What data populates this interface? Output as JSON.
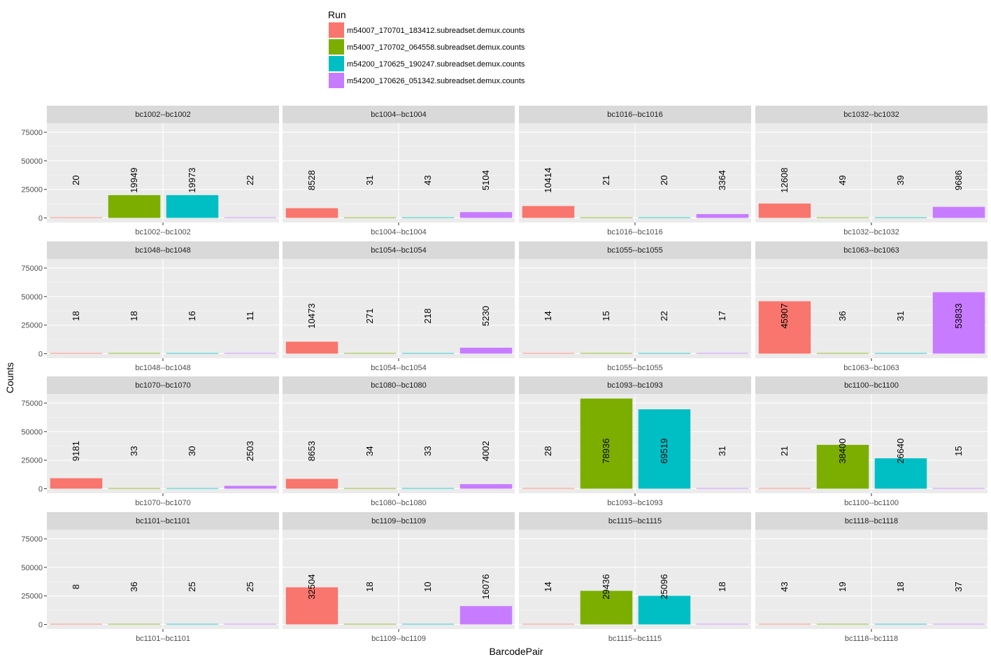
{
  "chart_data": {
    "type": "bar",
    "layout": "faceted-grid",
    "xlabel": "BarcodePair",
    "ylabel": "Counts",
    "ylim": [
      -4000,
      83000
    ],
    "yticks": [
      0,
      25000,
      50000,
      75000
    ],
    "ytick_labels": [
      "0",
      "25000",
      "50000",
      "75000"
    ],
    "legend": {
      "title": "Run",
      "position": "top",
      "entries": [
        {
          "name": "m54007_170701_183412.subreadset.demux.counts",
          "color": "#F8766D"
        },
        {
          "name": "m54007_170702_064558.subreadset.demux.counts",
          "color": "#7CAE00"
        },
        {
          "name": "m54200_170625_190247.subreadset.demux.counts",
          "color": "#00BFC4"
        },
        {
          "name": "m54200_170626_051342.subreadset.demux.counts",
          "color": "#C77CFF"
        }
      ]
    },
    "series_colors": [
      "#F8766D",
      "#7CAE00",
      "#00BFC4",
      "#C77CFF"
    ],
    "facets": [
      {
        "label": "bc1002--bc1002",
        "values": [
          20,
          19949,
          19973,
          22
        ]
      },
      {
        "label": "bc1004--bc1004",
        "values": [
          8528,
          31,
          43,
          5104
        ]
      },
      {
        "label": "bc1016--bc1016",
        "values": [
          10414,
          21,
          20,
          3364
        ]
      },
      {
        "label": "bc1032--bc1032",
        "values": [
          12608,
          49,
          39,
          9686
        ]
      },
      {
        "label": "bc1048--bc1048",
        "values": [
          18,
          18,
          16,
          11
        ]
      },
      {
        "label": "bc1054--bc1054",
        "values": [
          10473,
          271,
          218,
          5230
        ]
      },
      {
        "label": "bc1055--bc1055",
        "values": [
          14,
          15,
          22,
          17
        ]
      },
      {
        "label": "bc1063--bc1063",
        "values": [
          45907,
          36,
          31,
          53833
        ]
      },
      {
        "label": "bc1070--bc1070",
        "values": [
          9181,
          33,
          30,
          2503
        ]
      },
      {
        "label": "bc1080--bc1080",
        "values": [
          8653,
          34,
          33,
          4002
        ]
      },
      {
        "label": "bc1093--bc1093",
        "values": [
          28,
          78936,
          69519,
          31
        ]
      },
      {
        "label": "bc1100--bc1100",
        "values": [
          21,
          38400,
          26640,
          15
        ]
      },
      {
        "label": "bc1101--bc1101",
        "values": [
          8,
          36,
          25,
          25
        ]
      },
      {
        "label": "bc1109--bc1109",
        "values": [
          32504,
          18,
          10,
          16076
        ]
      },
      {
        "label": "bc1115--bc1115",
        "values": [
          14,
          29436,
          25096,
          18
        ]
      },
      {
        "label": "bc1118--bc1118",
        "values": [
          43,
          19,
          18,
          37
        ]
      }
    ]
  }
}
